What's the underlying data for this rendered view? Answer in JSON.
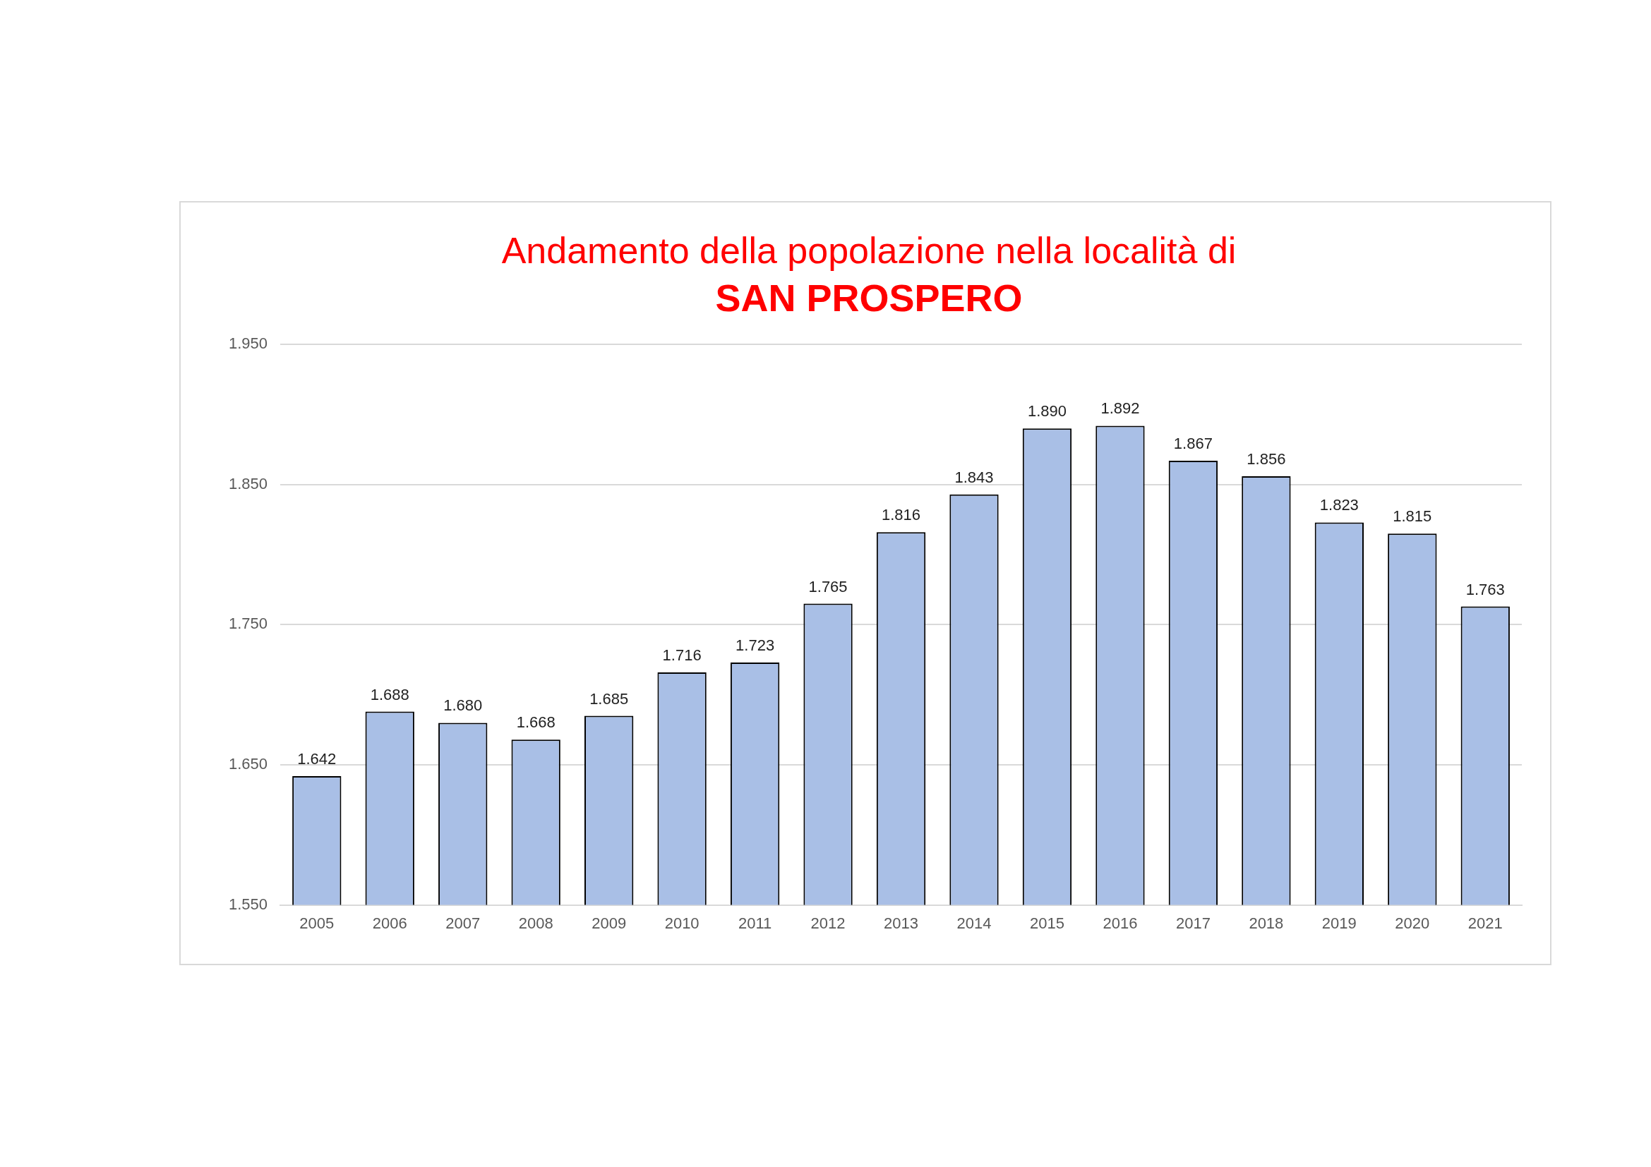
{
  "chart_data": {
    "type": "bar",
    "title": "Andamento della popolazione nella località di",
    "subtitle": "SAN PROSPERO",
    "categories": [
      "2005",
      "2006",
      "2007",
      "2008",
      "2009",
      "2010",
      "2011",
      "2012",
      "2013",
      "2014",
      "2015",
      "2016",
      "2017",
      "2018",
      "2019",
      "2020",
      "2021"
    ],
    "values": [
      1642,
      1688,
      1680,
      1668,
      1685,
      1716,
      1723,
      1765,
      1816,
      1843,
      1890,
      1892,
      1867,
      1856,
      1823,
      1815,
      1763
    ],
    "value_labels": [
      "1.642",
      "1.688",
      "1.680",
      "1.668",
      "1.685",
      "1.716",
      "1.723",
      "1.765",
      "1.816",
      "1.843",
      "1.890",
      "1.892",
      "1.867",
      "1.856",
      "1.823",
      "1.815",
      "1.763"
    ],
    "color": "#a9bfe6",
    "ylim": [
      1550,
      1950
    ],
    "yticks": [
      {
        "value": 1550,
        "label": "1.550"
      },
      {
        "value": 1650,
        "label": "1.650"
      },
      {
        "value": 1750,
        "label": "1.750"
      },
      {
        "value": 1850,
        "label": "1.850"
      },
      {
        "value": 1950,
        "label": "1.950"
      }
    ],
    "grid": "y",
    "legend": false
  }
}
